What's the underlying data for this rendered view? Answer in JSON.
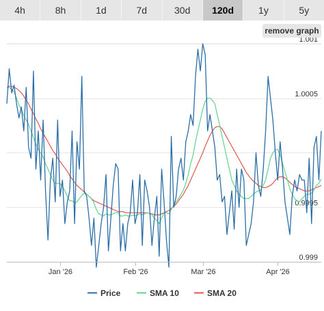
{
  "tabs": [
    {
      "label": "4h",
      "active": false
    },
    {
      "label": "8h",
      "active": false
    },
    {
      "label": "1d",
      "active": false
    },
    {
      "label": "7d",
      "active": false
    },
    {
      "label": "30d",
      "active": false
    },
    {
      "label": "120d",
      "active": true
    },
    {
      "label": "1y",
      "active": false
    },
    {
      "label": "5y",
      "active": false
    }
  ],
  "remove_graph_label": "remove graph",
  "colors": {
    "price": "#2b6ea6",
    "sma10": "#5fd38d",
    "sma20": "#e2574c",
    "grid": "#e6e6e6"
  },
  "chart_data": {
    "type": "line",
    "ylim": [
      0.999,
      1.001
    ],
    "yticks": [
      {
        "label": "0.999",
        "value": 0.999
      },
      {
        "label": "0.9995",
        "value": 0.9995
      },
      {
        "label": "1.0005",
        "value": 1.0005
      },
      {
        "label": "1.001",
        "value": 1.001
      }
    ],
    "grid_values": [
      0.999,
      0.9995,
      1.0,
      1.0005,
      1.001
    ],
    "xticks": [
      {
        "label": "Jan '26",
        "index": 22
      },
      {
        "label": "Feb '26",
        "index": 53
      },
      {
        "label": "Mar '26",
        "index": 81
      },
      {
        "label": "Apr '26",
        "index": 112
      }
    ],
    "series": [
      {
        "name": "Price",
        "key": "price",
        "values": [
          1.00045,
          1.00077,
          1.00055,
          1.00062,
          1.00045,
          1.00032,
          1.00042,
          1.0002,
          1.0006,
          1.00005,
          0.99995,
          1.00075,
          0.99985,
          1.0002,
          0.99975,
          1.0003,
          0.99965,
          0.9992,
          0.99975,
          0.99995,
          0.99955,
          1.0003,
          0.9996,
          0.99975,
          0.99935,
          0.99955,
          0.99965,
          1.0002,
          0.99935,
          1.0001,
          0.99985,
          1.0007,
          0.99965,
          0.9996,
          0.9994,
          0.99915,
          0.9994,
          0.99895,
          0.99915,
          0.99935,
          0.9995,
          0.9998,
          0.9991,
          0.9994,
          0.9997,
          0.9999,
          0.99985,
          0.9991,
          0.99935,
          0.9991,
          0.99935,
          0.99945,
          0.99975,
          0.99935,
          0.99945,
          0.9998,
          0.99915,
          0.99975,
          0.99965,
          0.9995,
          0.99915,
          0.9994,
          0.9996,
          0.99905,
          0.99985,
          0.99955,
          0.9992,
          0.99895,
          1.00015,
          0.9995,
          0.9996,
          0.99985,
          0.99995,
          0.99975,
          1.0001,
          1.0002,
          1.00035,
          1.00025,
          1.0007,
          1.00095,
          1.00075,
          1.001,
          1.0009,
          1.0002,
          1.00035,
          1.0002,
          1.00005,
          0.99975,
          0.9998,
          0.99955,
          0.9996,
          0.99925,
          0.99945,
          0.99965,
          0.9993,
          0.99985,
          0.9995,
          0.99985,
          0.99975,
          0.99915,
          0.99925,
          0.99935,
          0.99955,
          1.0,
          0.9997,
          0.9996,
          0.99985,
          1.0002,
          1.0007,
          1.0005,
          1.0003,
          1.0,
          0.99975,
          1.0001,
          0.99985,
          0.99955,
          0.9994,
          0.99925,
          0.9996,
          0.99975,
          0.99965,
          0.9998,
          0.99975,
          0.99975,
          0.99945,
          0.99995,
          0.99935,
          1.00005,
          1.00015,
          0.99975,
          1.0002
        ]
      },
      {
        "name": "SMA 10",
        "key": "sma10",
        "values": [
          1.0006,
          1.0006,
          1.00058,
          1.00056,
          1.0005,
          1.00044,
          1.0004,
          1.00034,
          1.0003,
          1.00026,
          1.0002,
          1.00014,
          1.00008,
          1.00003,
          1.0,
          0.99996,
          0.9999,
          0.99985,
          0.9998,
          0.99975,
          0.99972,
          0.99972,
          0.99972,
          0.99969,
          0.99965,
          0.9996,
          0.99956,
          0.99956,
          0.99954,
          0.99955,
          0.99958,
          0.99961,
          0.99963,
          0.99962,
          0.9996,
          0.99958,
          0.99954,
          0.99948,
          0.99944,
          0.99943,
          0.99942,
          0.99944,
          0.99943,
          0.99943,
          0.99944,
          0.99945,
          0.99945,
          0.99942,
          0.99942,
          0.99943,
          0.99942,
          0.99942,
          0.99943,
          0.99942,
          0.99943,
          0.99944,
          0.99943,
          0.99944,
          0.99945,
          0.99944,
          0.99943,
          0.9994,
          0.99938,
          0.99935,
          0.9994,
          0.99945,
          0.99945,
          0.99944,
          0.99948,
          0.99952,
          0.99955,
          0.99958,
          0.99962,
          0.99966,
          0.99972,
          0.9998,
          0.9999,
          0.99998,
          1.0001,
          1.0002,
          1.0003,
          1.0004,
          1.00047,
          1.0005,
          1.0005,
          1.00048,
          1.00045,
          1.00035,
          1.00025,
          1.00015,
          1.00005,
          0.99995,
          0.99985,
          0.99975,
          0.9997,
          0.99965,
          0.99962,
          0.9996,
          0.99958,
          0.99958,
          0.99958,
          0.9996,
          0.99962,
          0.99964,
          0.99965,
          0.99966,
          0.9997,
          0.99975,
          0.99985,
          0.99995,
          1.0,
          1.00003,
          1.00003,
          0.99998,
          0.9999,
          0.99983,
          0.99975,
          0.99967,
          0.99962,
          0.99958,
          0.99956,
          0.99955,
          0.99958,
          0.9996,
          0.99962,
          0.99962,
          0.99963,
          0.99966,
          0.9997,
          0.99972,
          0.99976
        ]
      },
      {
        "name": "SMA 20",
        "key": "sma20",
        "values": [
          1.0006,
          1.00061,
          1.00061,
          1.0006,
          1.00059,
          1.00057,
          1.00055,
          1.00052,
          1.00048,
          1.00045,
          1.0004,
          1.00036,
          1.00031,
          1.00027,
          1.00022,
          1.00018,
          1.00014,
          1.0001,
          1.00006,
          1.00002,
          0.99999,
          0.99995,
          0.99992,
          0.99989,
          0.99986,
          0.99983,
          0.99979,
          0.99976,
          0.99973,
          0.9997,
          0.99968,
          0.99966,
          0.99964,
          0.99962,
          0.9996,
          0.99958,
          0.99956,
          0.99955,
          0.99954,
          0.99953,
          0.99952,
          0.99951,
          0.9995,
          0.99949,
          0.99948,
          0.99947,
          0.99946,
          0.99946,
          0.99946,
          0.99945,
          0.99945,
          0.99945,
          0.99945,
          0.99945,
          0.99945,
          0.99945,
          0.99945,
          0.99945,
          0.99945,
          0.99944,
          0.99944,
          0.99943,
          0.99943,
          0.99943,
          0.99944,
          0.99945,
          0.99946,
          0.99947,
          0.99949,
          0.99951,
          0.99953,
          0.99956,
          0.99959,
          0.99962,
          0.99966,
          0.9997,
          0.99975,
          0.9998,
          0.99985,
          0.9999,
          0.99995,
          1.0,
          1.00006,
          1.00011,
          1.00016,
          1.0002,
          1.00023,
          1.00024,
          1.00024,
          1.00022,
          1.00018,
          1.00014,
          1.0001,
          1.00006,
          1.00002,
          0.99998,
          0.99994,
          0.9999,
          0.99986,
          0.99982,
          0.99979,
          0.99976,
          0.99974,
          0.99972,
          0.9997,
          0.99969,
          0.99968,
          0.99968,
          0.99969,
          0.9997,
          0.99972,
          0.99975,
          0.99977,
          0.99978,
          0.99978,
          0.99977,
          0.99975,
          0.99973,
          0.99971,
          0.99969,
          0.99968,
          0.99967,
          0.99966,
          0.99965,
          0.99965,
          0.99965,
          0.99966,
          0.99967,
          0.99968,
          0.99969,
          0.9997
        ]
      }
    ],
    "legend": [
      "Price",
      "SMA 10",
      "SMA 20"
    ],
    "legend_position": "bottom"
  }
}
